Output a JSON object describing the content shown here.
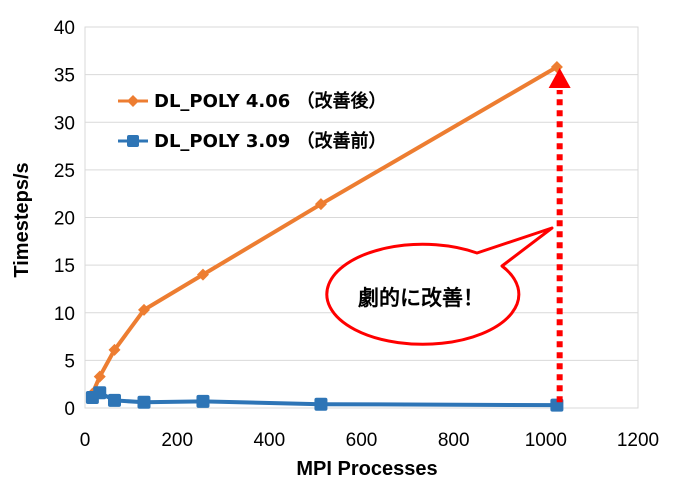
{
  "chart_data": {
    "type": "line",
    "xlabel": "MPI Processes",
    "ylabel": "Timesteps/s",
    "xlim": [
      0,
      1200
    ],
    "ylim": [
      0,
      40
    ],
    "x_ticks": [
      0,
      200,
      400,
      600,
      800,
      1000,
      1200
    ],
    "y_ticks": [
      0,
      5,
      10,
      15,
      20,
      25,
      30,
      35,
      40
    ],
    "grid": "horizontal",
    "legend_position": "top-left",
    "series": [
      {
        "name": "DL_POLY 4.06 （改善後）",
        "color": "#ED7D31",
        "marker": "diamond",
        "points": [
          [
            16,
            1.5
          ],
          [
            32,
            3.3
          ],
          [
            64,
            6.1
          ],
          [
            128,
            10.3
          ],
          [
            256,
            14.0
          ],
          [
            512,
            21.4
          ],
          [
            1024,
            35.8
          ]
        ]
      },
      {
        "name": "DL_POLY 3.09 （改善前）",
        "color": "#2E75B6",
        "marker": "square",
        "points": [
          [
            16,
            1.1
          ],
          [
            32,
            1.6
          ],
          [
            64,
            0.8
          ],
          [
            128,
            0.6
          ],
          [
            256,
            0.7
          ],
          [
            512,
            0.4
          ],
          [
            1024,
            0.3
          ]
        ]
      }
    ],
    "annotations": [
      {
        "text": "劇的に改善！",
        "shape": "callout-ellipse",
        "stroke": "#FF0000",
        "arrow": {
          "style": "dotted-vertical",
          "color": "#FF0000",
          "x": 1030,
          "from_y": 0.6,
          "to_y": 33.6
        }
      }
    ]
  }
}
